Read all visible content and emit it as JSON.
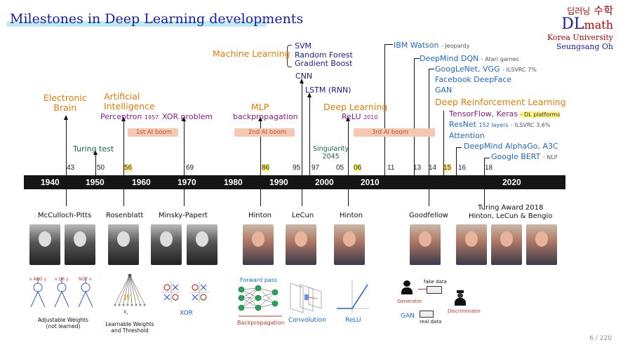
{
  "title": "Milestones in Deep Learning developments",
  "logo": {
    "korean_top": "딥러닝",
    "korean_math": "수학",
    "dl": "DL",
    "math": "math",
    "sub1": "Korea University",
    "sub2": "Seungsang Oh"
  },
  "decades": [
    "1940",
    "1950",
    "1960",
    "1970",
    "1980",
    "1990",
    "2000",
    "2010",
    "2020"
  ],
  "years": [
    {
      "label": "43",
      "highlight": false
    },
    {
      "label": "50",
      "highlight": false
    },
    {
      "label": "56",
      "highlight": true
    },
    {
      "label": "69",
      "highlight": false
    },
    {
      "label": "86",
      "highlight": true
    },
    {
      "label": "95",
      "highlight": false
    },
    {
      "label": "97",
      "highlight": false
    },
    {
      "label": "05",
      "highlight": false
    },
    {
      "label": "06",
      "highlight": true
    },
    {
      "label": "11",
      "highlight": false
    },
    {
      "label": "13",
      "highlight": false
    },
    {
      "label": "14",
      "highlight": false
    },
    {
      "label": "15",
      "highlight": true
    },
    {
      "label": "16",
      "highlight": false
    },
    {
      "label": "18",
      "highlight": false
    }
  ],
  "booms": [
    "1st AI boom",
    "2nd AI boom",
    "3rd AI boom"
  ],
  "events": {
    "electronic_brain": [
      "Electronic",
      "Brain"
    ],
    "turing_test": "Turing test",
    "ai": [
      "Artificial",
      "Intelligence"
    ],
    "perceptron": "Perceptron",
    "perceptron_year": "1957",
    "xor_problem": "XOR problem",
    "mlp": "MLP",
    "backprop": "backpropagation",
    "machine_learning": "Machine Learning",
    "ml_items": [
      "SVM",
      "Random Forest",
      "Gradient Boost"
    ],
    "cnn": "CNN",
    "lstm": "LSTM (RNN)",
    "singularity": [
      "Singularity",
      "2045"
    ],
    "deep_learning": "Deep Learning",
    "relu": "ReLU",
    "relu_year": "2010",
    "ibm": "IBM Watson",
    "ibm_note": "- Jeopardy",
    "dqn": "DeepMind DQN",
    "dqn_note": "- Atari games",
    "googlenet": "GoogLeNet, VGG",
    "googlenet_note": "- ILSVRC 7%",
    "deepface": "Facebook DeepFace",
    "gan": "GAN",
    "drl": "Deep Reinforcement Learning",
    "tensorflow": "TensorFlow, Keras",
    "tensorflow_note": "- DL platforms",
    "resnet": "ResNet",
    "resnet_layers": "152 layers",
    "resnet_note": "- ILSVRC 3.6%",
    "attention": "Attention",
    "alphago": "DeepMind AlphaGo, A3C",
    "bert": "Google BERT",
    "bert_note": "- NLP"
  },
  "people": {
    "mcculloch": "McCulloch-Pitts",
    "rosenblatt": "Rosenblatt",
    "minsky": "Minsky-Papert",
    "hinton1": "Hinton",
    "lecun": "LeCun",
    "hinton2": "Hinton",
    "goodfellow": "Goodfellow",
    "turing_award": [
      "Turing Award 2018",
      "Hinton, LeCun & Bengio"
    ]
  },
  "captions": {
    "adjustable": [
      "Adjustable Weights",
      "(not learned)"
    ],
    "learnable": [
      "Learnable Weights",
      "and Threshold"
    ],
    "weight_symbol": "W",
    "weight_sub": "i",
    "input_symbol": "x",
    "input_sub": "i",
    "xor": "XOR",
    "forward": "Forward pass",
    "backprop": "Backpropagation",
    "convolution": "Convolution",
    "relu": "ReLU",
    "fake_data": "fake data",
    "real_data": "real data",
    "generator": "Generator",
    "discriminator": "Discriminator",
    "gan": "GAN"
  },
  "page": "6 / 220"
}
